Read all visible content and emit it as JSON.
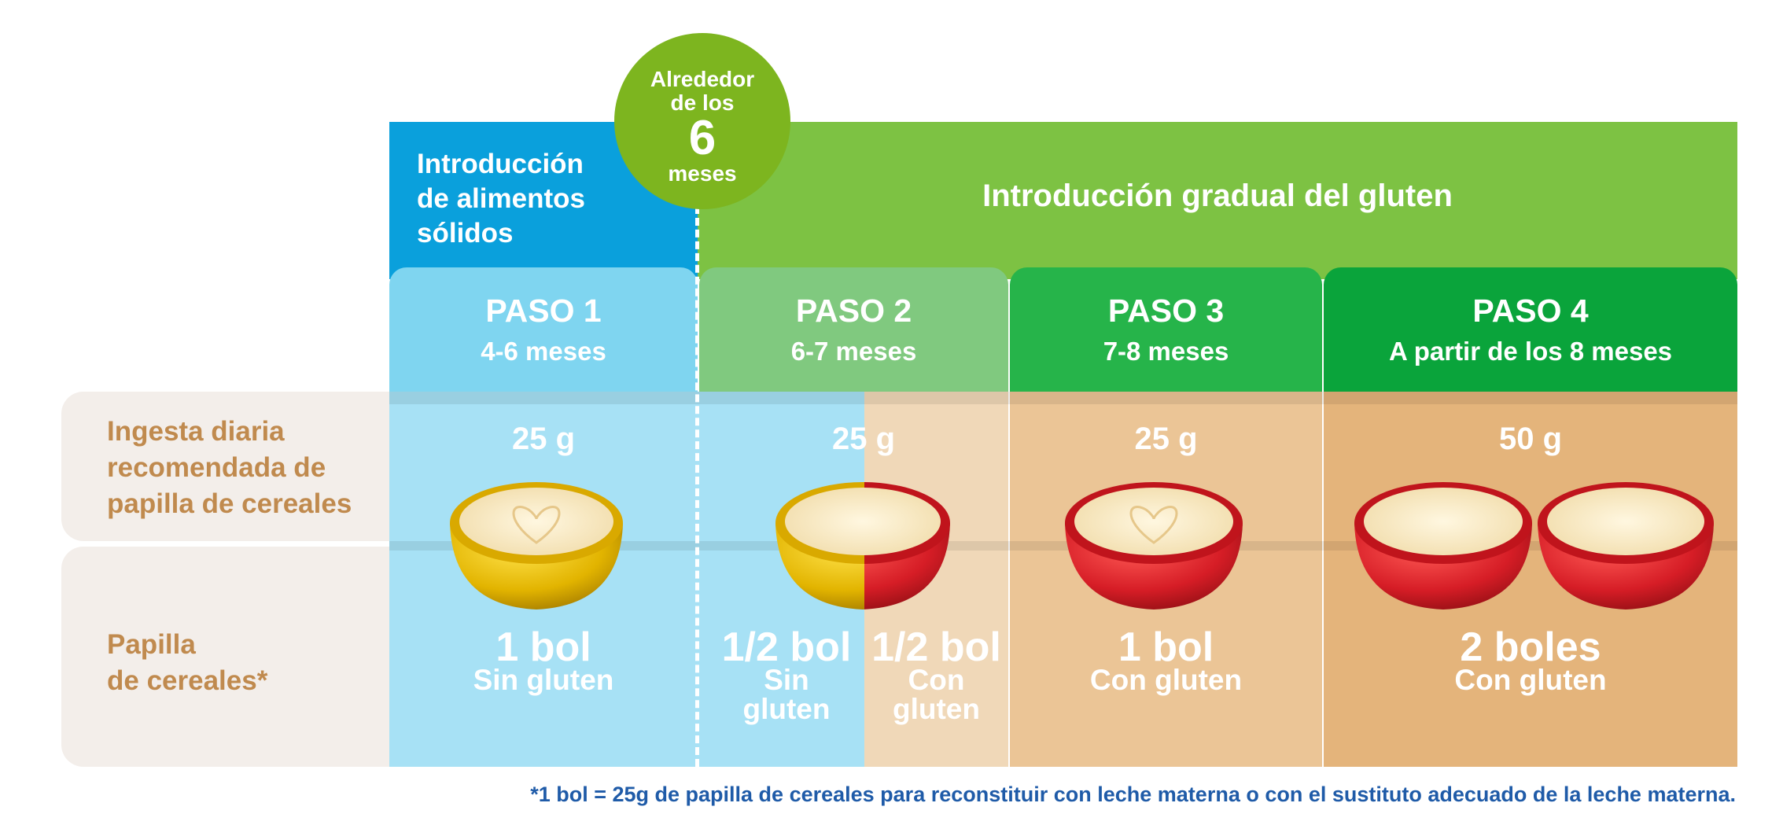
{
  "header": {
    "solids": "Introducción de alimentos sólidos",
    "solids_line1": "Introducción",
    "solids_line2": "de alimentos",
    "solids_line3": "sólidos",
    "gluten": "Introducción gradual del gluten"
  },
  "badge": {
    "line1": "Alrededor",
    "line2": "de los",
    "number": "6",
    "line3": "meses"
  },
  "steps": [
    {
      "title": "PASO 1",
      "age": "4-6 meses",
      "grams": "25 g",
      "amount": "1 bol",
      "note": "Sin gluten"
    },
    {
      "title": "PASO 2",
      "age": "6-7 meses",
      "grams": "25 g",
      "amount_a": "1/2 bol",
      "note_a_1": "Sin",
      "note_a_2": "gluten",
      "amount_b": "1/2 bol",
      "note_b_1": "Con",
      "note_b_2": "gluten"
    },
    {
      "title": "PASO 3",
      "age": "7-8 meses",
      "grams": "25 g",
      "amount": "1 bol",
      "note": "Con gluten"
    },
    {
      "title": "PASO 4",
      "age": "A partir de los 8 meses",
      "grams": "50 g",
      "amount": "2 boles",
      "note": "Con gluten"
    }
  ],
  "rows": {
    "intake_1": "Ingesta diaria",
    "intake_2": "recomendada de",
    "intake_3": "papilla de cereales",
    "cereal_1": "Papilla",
    "cereal_2": "de cereales*"
  },
  "footnote": "*1 bol = 25g de papilla de cereales para reconstituir con leche materna o con el sustituto adecuado de la leche materna.",
  "colors": {
    "blue_header": "#0aa0dc",
    "green_header": "#7dc243",
    "bowl_yellow": "#e2b400",
    "bowl_red": "#d61d26",
    "footnote": "#1f5ba8"
  }
}
